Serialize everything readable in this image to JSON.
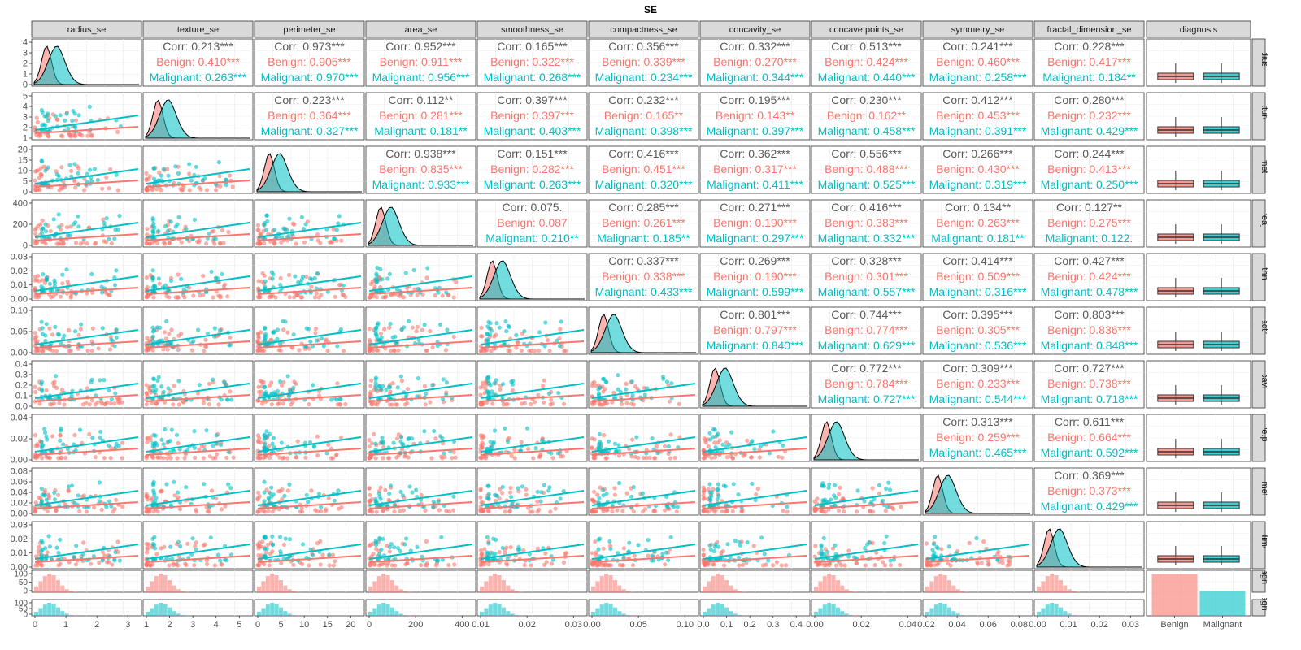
{
  "chart_data": {
    "type": "scatter-matrix",
    "title": "SE",
    "variables": [
      "radius_se",
      "texture_se",
      "perimeter_se",
      "area_se",
      "smoothness_se",
      "compactness_se",
      "concavity_se",
      "concave.points_se",
      "symmetry_se",
      "fractal_dimension_se"
    ],
    "row_strip_labels": [
      "radius_se",
      "texture_se",
      "perimeter_se",
      "area_se",
      "smoothness_se",
      "compactness_se",
      "concavity_se",
      "concave.points_se",
      "symmetry_se",
      "fractal_dimension_se",
      "diagnosis",
      "diagnosis"
    ],
    "diagnosis_label": "diagnosis",
    "groups": [
      "Benign",
      "Malignant"
    ],
    "group_colors": {
      "Benign": "#F8766D",
      "Malignant": "#00BFC4",
      "Corr": "#595959"
    },
    "corr_label": "Corr",
    "x_axis_ticks": [
      [
        "0",
        "1",
        "2",
        "3"
      ],
      [
        "1",
        "2",
        "3",
        "4",
        "5"
      ],
      [
        "0",
        "5",
        "10",
        "15",
        "20"
      ],
      [
        "0",
        "200",
        "400"
      ],
      [
        "0.01",
        "0.02",
        "0.03"
      ],
      [
        "0.00",
        "0.05",
        "0.10"
      ],
      [
        "0.0",
        "0.1",
        "0.2",
        "0.3",
        "0.4"
      ],
      [
        "0.00",
        "0.02",
        "0.04"
      ],
      [
        "0.02",
        "0.04",
        "0.06",
        "0.08"
      ],
      [
        "0.00",
        "0.01",
        "0.02",
        "0.03"
      ]
    ],
    "diagnosis_x_ticks": [
      "Benign",
      "Malignant"
    ],
    "y_axis_ticks": [
      [
        "0",
        "1",
        "2",
        "3",
        "4"
      ],
      [
        "1",
        "2",
        "3",
        "4",
        "5"
      ],
      [
        "0",
        "5",
        "10",
        "15",
        "20"
      ],
      [
        "0",
        "200",
        "400"
      ],
      [
        "0.00",
        "0.01",
        "0.02",
        "0.03"
      ],
      [
        "0.00",
        "0.05",
        "0.10"
      ],
      [
        "0.0",
        "0.1",
        "0.2",
        "0.3",
        "0.4"
      ],
      [
        "0.00",
        "0.02",
        "0.04"
      ],
      [
        "0.00",
        "0.02",
        "0.04",
        "0.06",
        "0.08"
      ],
      [
        "0.00",
        "0.01",
        "0.02",
        "0.03"
      ],
      [
        "0",
        "50",
        "100"
      ],
      [
        "0",
        "50",
        "100"
      ]
    ],
    "axis_ranges": [
      [
        0,
        3
      ],
      [
        0.36,
        5
      ],
      [
        0.76,
        22
      ],
      [
        6.8,
        542
      ],
      [
        0.0017,
        0.031
      ],
      [
        0.0023,
        0.135
      ],
      [
        0,
        0.4
      ],
      [
        0,
        0.053
      ],
      [
        0.0079,
        0.079
      ],
      [
        0.0009,
        0.03
      ]
    ],
    "correlations": [
      {
        "row": 0,
        "col": 1,
        "overall": "0.213***",
        "benign": "0.410***",
        "malignant": "0.263***"
      },
      {
        "row": 0,
        "col": 2,
        "overall": "0.973***",
        "benign": "0.905***",
        "malignant": "0.970***"
      },
      {
        "row": 0,
        "col": 3,
        "overall": "0.952***",
        "benign": "0.911***",
        "malignant": "0.956***"
      },
      {
        "row": 0,
        "col": 4,
        "overall": "0.165***",
        "benign": "0.322***",
        "malignant": "0.268***"
      },
      {
        "row": 0,
        "col": 5,
        "overall": "0.356***",
        "benign": "0.339***",
        "malignant": "0.234***"
      },
      {
        "row": 0,
        "col": 6,
        "overall": "0.332***",
        "benign": "0.270***",
        "malignant": "0.344***"
      },
      {
        "row": 0,
        "col": 7,
        "overall": "0.513***",
        "benign": "0.424***",
        "malignant": "0.440***"
      },
      {
        "row": 0,
        "col": 8,
        "overall": "0.241***",
        "benign": "0.460***",
        "malignant": "0.258***"
      },
      {
        "row": 0,
        "col": 9,
        "overall": "0.228***",
        "benign": "0.417***",
        "malignant": "0.184**"
      },
      {
        "row": 1,
        "col": 2,
        "overall": "0.223***",
        "benign": "0.364***",
        "malignant": "0.327***"
      },
      {
        "row": 1,
        "col": 3,
        "overall": "0.112**",
        "benign": "0.281***",
        "malignant": "0.181**"
      },
      {
        "row": 1,
        "col": 4,
        "overall": "0.397***",
        "benign": "0.397***",
        "malignant": "0.403***"
      },
      {
        "row": 1,
        "col": 5,
        "overall": "0.232***",
        "benign": "0.165**",
        "malignant": "0.398***"
      },
      {
        "row": 1,
        "col": 6,
        "overall": "0.195***",
        "benign": "0.143**",
        "malignant": "0.397***"
      },
      {
        "row": 1,
        "col": 7,
        "overall": "0.230***",
        "benign": "0.162**",
        "malignant": "0.458***"
      },
      {
        "row": 1,
        "col": 8,
        "overall": "0.412***",
        "benign": "0.453***",
        "malignant": "0.391***"
      },
      {
        "row": 1,
        "col": 9,
        "overall": "0.280***",
        "benign": "0.232***",
        "malignant": "0.429***"
      },
      {
        "row": 2,
        "col": 3,
        "overall": "0.938***",
        "benign": "0.835***",
        "malignant": "0.933***"
      },
      {
        "row": 2,
        "col": 4,
        "overall": "0.151***",
        "benign": "0.282***",
        "malignant": "0.263***"
      },
      {
        "row": 2,
        "col": 5,
        "overall": "0.416***",
        "benign": "0.451***",
        "malignant": "0.320***"
      },
      {
        "row": 2,
        "col": 6,
        "overall": "0.362***",
        "benign": "0.317***",
        "malignant": "0.411***"
      },
      {
        "row": 2,
        "col": 7,
        "overall": "0.556***",
        "benign": "0.488***",
        "malignant": "0.525***"
      },
      {
        "row": 2,
        "col": 8,
        "overall": "0.266***",
        "benign": "0.430***",
        "malignant": "0.319***"
      },
      {
        "row": 2,
        "col": 9,
        "overall": "0.244***",
        "benign": "0.413***",
        "malignant": "0.250***"
      },
      {
        "row": 3,
        "col": 4,
        "overall": "0.075.",
        "benign": "0.087",
        "malignant": "0.210**"
      },
      {
        "row": 3,
        "col": 5,
        "overall": "0.285***",
        "benign": "0.261***",
        "malignant": "0.185**"
      },
      {
        "row": 3,
        "col": 6,
        "overall": "0.271***",
        "benign": "0.190***",
        "malignant": "0.297***"
      },
      {
        "row": 3,
        "col": 7,
        "overall": "0.416***",
        "benign": "0.383***",
        "malignant": "0.332***"
      },
      {
        "row": 3,
        "col": 8,
        "overall": "0.134**",
        "benign": "0.263***",
        "malignant": "0.181**"
      },
      {
        "row": 3,
        "col": 9,
        "overall": "0.127**",
        "benign": "0.275***",
        "malignant": "0.122."
      },
      {
        "row": 4,
        "col": 5,
        "overall": "0.337***",
        "benign": "0.338***",
        "malignant": "0.433***"
      },
      {
        "row": 4,
        "col": 6,
        "overall": "0.269***",
        "benign": "0.190***",
        "malignant": "0.599***"
      },
      {
        "row": 4,
        "col": 7,
        "overall": "0.328***",
        "benign": "0.301***",
        "malignant": "0.557***"
      },
      {
        "row": 4,
        "col": 8,
        "overall": "0.414***",
        "benign": "0.509***",
        "malignant": "0.316***"
      },
      {
        "row": 4,
        "col": 9,
        "overall": "0.427***",
        "benign": "0.424***",
        "malignant": "0.478***"
      },
      {
        "row": 5,
        "col": 6,
        "overall": "0.801***",
        "benign": "0.797***",
        "malignant": "0.840***"
      },
      {
        "row": 5,
        "col": 7,
        "overall": "0.744***",
        "benign": "0.774***",
        "malignant": "0.629***"
      },
      {
        "row": 5,
        "col": 8,
        "overall": "0.395***",
        "benign": "0.305***",
        "malignant": "0.536***"
      },
      {
        "row": 5,
        "col": 9,
        "overall": "0.803***",
        "benign": "0.836***",
        "malignant": "0.848***"
      },
      {
        "row": 6,
        "col": 7,
        "overall": "0.772***",
        "benign": "0.784***",
        "malignant": "0.727***"
      },
      {
        "row": 6,
        "col": 8,
        "overall": "0.309***",
        "benign": "0.233***",
        "malignant": "0.544***"
      },
      {
        "row": 6,
        "col": 9,
        "overall": "0.727***",
        "benign": "0.738***",
        "malignant": "0.718***"
      },
      {
        "row": 7,
        "col": 8,
        "overall": "0.313***",
        "benign": "0.259***",
        "malignant": "0.465***"
      },
      {
        "row": 7,
        "col": 9,
        "overall": "0.611***",
        "benign": "0.664***",
        "malignant": "0.592***"
      },
      {
        "row": 8,
        "col": 9,
        "overall": "0.369***",
        "benign": "0.373***",
        "malignant": "0.429***"
      }
    ],
    "diagnosis_counts": {
      "Benign": 357,
      "Malignant": 212
    },
    "grid": true,
    "legend": "none"
  }
}
